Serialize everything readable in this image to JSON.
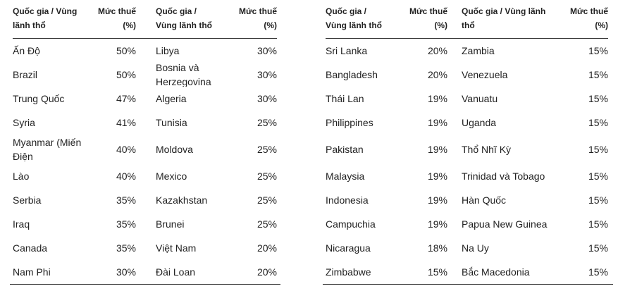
{
  "tables": [
    {
      "headers": [
        "Quốc gia / Vùng lãnh thổ",
        "Mức thuế (%)",
        "Quốc gia / Vùng lãnh thổ",
        "Mức thuế (%)"
      ],
      "rows": [
        [
          "Ấn Độ",
          "50%",
          "Libya",
          "30%"
        ],
        [
          "Brazil",
          "50%",
          "Bosnia và Herzegovina",
          "30%"
        ],
        [
          "Trung Quốc",
          "47%",
          "Algeria",
          "30%"
        ],
        [
          "Syria",
          "41%",
          "Tunisia",
          "25%"
        ],
        [
          "Myanmar (Miến Điện",
          "40%",
          "Moldova",
          "25%"
        ],
        [
          "Lào",
          "40%",
          "Mexico",
          "25%"
        ],
        [
          "Serbia",
          "35%",
          "Kazakhstan",
          "25%"
        ],
        [
          "Iraq",
          "35%",
          "Brunei",
          "25%"
        ],
        [
          "Canada",
          "35%",
          "Việt Nam",
          "20%"
        ],
        [
          "Nam Phi",
          "30%",
          "Đài Loan",
          "20%"
        ]
      ]
    },
    {
      "headers": [
        "Quốc gia / Vùng lãnh thổ",
        "Mức thuế (%)",
        "Quốc gia / Vùng lãnh thổ",
        "Mức thuế (%)"
      ],
      "rows": [
        [
          "Sri Lanka",
          "20%",
          "Zambia",
          "15%"
        ],
        [
          "Bangladesh",
          "20%",
          "Venezuela",
          "15%"
        ],
        [
          "Thái Lan",
          "19%",
          "Vanuatu",
          "15%"
        ],
        [
          "Philippines",
          "19%",
          "Uganda",
          "15%"
        ],
        [
          "Pakistan",
          "19%",
          "Thổ Nhĩ Kỳ",
          "15%"
        ],
        [
          "Malaysia",
          "19%",
          "Trinidad và Tobago",
          "15%"
        ],
        [
          "Indonesia",
          "19%",
          "Hàn Quốc",
          "15%"
        ],
        [
          "Campuchia",
          "19%",
          "Papua New Guinea",
          "15%"
        ],
        [
          "Nicaragua",
          "18%",
          "Na Uy",
          "15%"
        ],
        [
          "Zimbabwe",
          "15%",
          "Bắc Macedonia",
          "15%"
        ]
      ]
    }
  ]
}
